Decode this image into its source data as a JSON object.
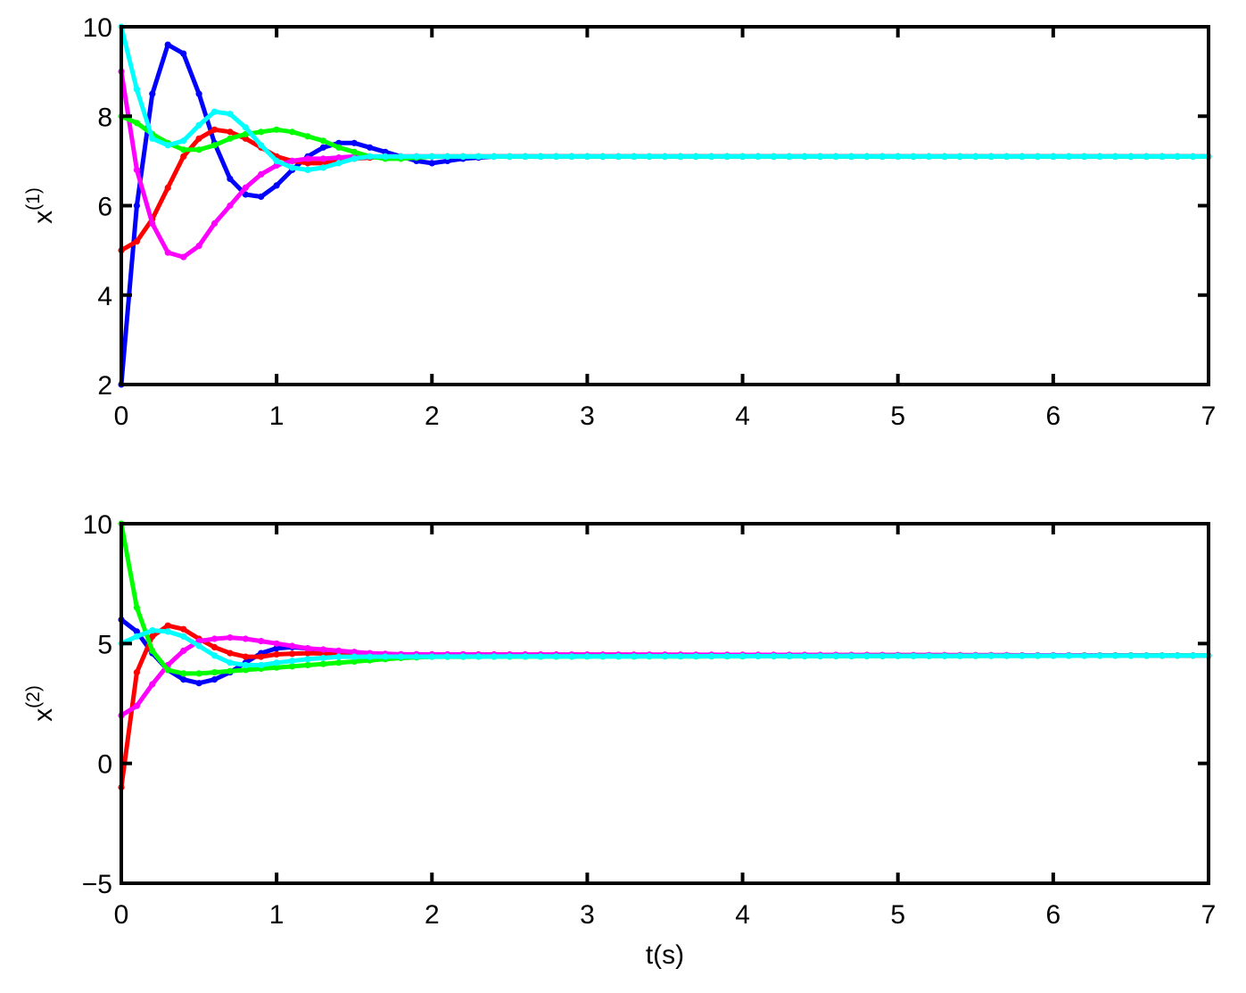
{
  "chart_data": [
    {
      "type": "line",
      "ylabel": "x",
      "ylabel_superscript": "(1)",
      "xlabel": "",
      "xlim": [
        0,
        7
      ],
      "ylim": [
        2,
        10
      ],
      "xticks": [
        "0",
        "1",
        "2",
        "3",
        "4",
        "5",
        "6",
        "7"
      ],
      "yticks": [
        "2",
        "4",
        "6",
        "8",
        "10"
      ],
      "grid": false,
      "markers": true,
      "series": [
        {
          "color": "#0000ff",
          "initial": 2,
          "final": 7.1,
          "points": [
            [
              0,
              2
            ],
            [
              0.1,
              6
            ],
            [
              0.2,
              8.5
            ],
            [
              0.3,
              9.6
            ],
            [
              0.4,
              9.4
            ],
            [
              0.5,
              8.5
            ],
            [
              0.6,
              7.4
            ],
            [
              0.7,
              6.6
            ],
            [
              0.8,
              6.25
            ],
            [
              0.9,
              6.2
            ],
            [
              1.0,
              6.45
            ],
            [
              1.1,
              6.8
            ],
            [
              1.2,
              7.1
            ],
            [
              1.3,
              7.3
            ],
            [
              1.4,
              7.4
            ],
            [
              1.5,
              7.4
            ],
            [
              1.6,
              7.3
            ],
            [
              1.7,
              7.2
            ],
            [
              1.8,
              7.1
            ],
            [
              1.9,
              7.0
            ],
            [
              2.0,
              6.95
            ],
            [
              2.1,
              7.0
            ],
            [
              2.2,
              7.05
            ],
            [
              2.4,
              7.1
            ],
            [
              7,
              7.1
            ]
          ]
        },
        {
          "color": "#ff0000",
          "initial": 5,
          "final": 7.1,
          "points": [
            [
              0,
              5
            ],
            [
              0.1,
              5.2
            ],
            [
              0.2,
              5.7
            ],
            [
              0.3,
              6.4
            ],
            [
              0.4,
              7.1
            ],
            [
              0.5,
              7.5
            ],
            [
              0.6,
              7.7
            ],
            [
              0.7,
              7.65
            ],
            [
              0.8,
              7.5
            ],
            [
              0.9,
              7.3
            ],
            [
              1.0,
              7.1
            ],
            [
              1.1,
              7.0
            ],
            [
              1.2,
              6.95
            ],
            [
              1.3,
              6.95
            ],
            [
              1.4,
              7.0
            ],
            [
              1.5,
              7.05
            ],
            [
              1.7,
              7.1
            ],
            [
              7,
              7.1
            ]
          ]
        },
        {
          "color": "#ff00ff",
          "initial": 9,
          "final": 7.1,
          "points": [
            [
              0,
              9
            ],
            [
              0.1,
              6.8
            ],
            [
              0.2,
              5.6
            ],
            [
              0.3,
              4.95
            ],
            [
              0.4,
              4.85
            ],
            [
              0.5,
              5.1
            ],
            [
              0.6,
              5.6
            ],
            [
              0.7,
              6.0
            ],
            [
              0.8,
              6.4
            ],
            [
              0.9,
              6.7
            ],
            [
              1.0,
              6.9
            ],
            [
              1.1,
              7.0
            ],
            [
              1.2,
              7.05
            ],
            [
              1.3,
              7.05
            ],
            [
              1.5,
              7.1
            ],
            [
              7,
              7.1
            ]
          ]
        },
        {
          "color": "#00ff00",
          "initial": 8,
          "final": 7.1,
          "points": [
            [
              0,
              8
            ],
            [
              0.1,
              7.85
            ],
            [
              0.2,
              7.6
            ],
            [
              0.3,
              7.4
            ],
            [
              0.4,
              7.25
            ],
            [
              0.5,
              7.25
            ],
            [
              0.6,
              7.35
            ],
            [
              0.7,
              7.5
            ],
            [
              0.8,
              7.6
            ],
            [
              0.9,
              7.65
            ],
            [
              1.0,
              7.7
            ],
            [
              1.1,
              7.65
            ],
            [
              1.2,
              7.55
            ],
            [
              1.3,
              7.45
            ],
            [
              1.4,
              7.3
            ],
            [
              1.5,
              7.2
            ],
            [
              1.6,
              7.1
            ],
            [
              1.7,
              7.05
            ],
            [
              1.8,
              7.05
            ],
            [
              2.0,
              7.1
            ],
            [
              7,
              7.1
            ]
          ]
        },
        {
          "color": "#00ffff",
          "initial": 10,
          "final": 7.1,
          "points": [
            [
              0,
              10
            ],
            [
              0.1,
              8.6
            ],
            [
              0.2,
              7.5
            ],
            [
              0.3,
              7.35
            ],
            [
              0.4,
              7.45
            ],
            [
              0.5,
              7.8
            ],
            [
              0.6,
              8.1
            ],
            [
              0.7,
              8.05
            ],
            [
              0.8,
              7.75
            ],
            [
              0.9,
              7.35
            ],
            [
              1.0,
              7.0
            ],
            [
              1.1,
              6.85
            ],
            [
              1.2,
              6.8
            ],
            [
              1.3,
              6.85
            ],
            [
              1.4,
              6.95
            ],
            [
              1.5,
              7.05
            ],
            [
              1.6,
              7.1
            ],
            [
              7,
              7.1
            ]
          ]
        }
      ]
    },
    {
      "type": "line",
      "ylabel": "x",
      "ylabel_superscript": "(2)",
      "xlabel": "t(s)",
      "xlim": [
        0,
        7
      ],
      "ylim": [
        -5,
        10
      ],
      "xticks": [
        "0",
        "1",
        "2",
        "3",
        "4",
        "5",
        "6",
        "7"
      ],
      "yticks": [
        "−5",
        "0",
        "5",
        "10"
      ],
      "grid": false,
      "markers": true,
      "series": [
        {
          "color": "#0000ff",
          "initial": 6,
          "final": 4.5,
          "points": [
            [
              0,
              6
            ],
            [
              0.1,
              5.5
            ],
            [
              0.2,
              4.6
            ],
            [
              0.3,
              3.9
            ],
            [
              0.4,
              3.5
            ],
            [
              0.5,
              3.35
            ],
            [
              0.6,
              3.5
            ],
            [
              0.7,
              3.8
            ],
            [
              0.8,
              4.2
            ],
            [
              0.9,
              4.6
            ],
            [
              1.0,
              4.8
            ],
            [
              1.1,
              4.85
            ],
            [
              1.2,
              4.8
            ],
            [
              1.3,
              4.7
            ],
            [
              1.5,
              4.6
            ],
            [
              1.8,
              4.5
            ],
            [
              7,
              4.5
            ]
          ]
        },
        {
          "color": "#ff0000",
          "initial": -1,
          "final": 4.5,
          "points": [
            [
              0,
              -1
            ],
            [
              0.1,
              3.8
            ],
            [
              0.2,
              5.3
            ],
            [
              0.3,
              5.75
            ],
            [
              0.4,
              5.6
            ],
            [
              0.5,
              5.2
            ],
            [
              0.6,
              4.85
            ],
            [
              0.7,
              4.6
            ],
            [
              0.8,
              4.45
            ],
            [
              0.9,
              4.45
            ],
            [
              1.0,
              4.55
            ],
            [
              1.2,
              4.6
            ],
            [
              1.5,
              4.55
            ],
            [
              7,
              4.5
            ]
          ]
        },
        {
          "color": "#ff00ff",
          "initial": 2,
          "final": 4.5,
          "points": [
            [
              0,
              2
            ],
            [
              0.1,
              2.4
            ],
            [
              0.2,
              3.3
            ],
            [
              0.3,
              4.1
            ],
            [
              0.4,
              4.7
            ],
            [
              0.5,
              5.1
            ],
            [
              0.6,
              5.2
            ],
            [
              0.7,
              5.25
            ],
            [
              0.8,
              5.2
            ],
            [
              0.9,
              5.1
            ],
            [
              1.0,
              5.0
            ],
            [
              1.1,
              4.9
            ],
            [
              1.2,
              4.8
            ],
            [
              1.4,
              4.7
            ],
            [
              1.6,
              4.6
            ],
            [
              1.8,
              4.55
            ],
            [
              7,
              4.5
            ]
          ]
        },
        {
          "color": "#00ff00",
          "initial": 10,
          "final": 4.5,
          "points": [
            [
              0,
              10
            ],
            [
              0.1,
              6.5
            ],
            [
              0.2,
              4.7
            ],
            [
              0.3,
              3.9
            ],
            [
              0.4,
              3.75
            ],
            [
              0.5,
              3.75
            ],
            [
              0.6,
              3.8
            ],
            [
              0.7,
              3.85
            ],
            [
              0.8,
              3.9
            ],
            [
              0.9,
              3.95
            ],
            [
              1.0,
              4.0
            ],
            [
              1.2,
              4.1
            ],
            [
              1.4,
              4.2
            ],
            [
              1.6,
              4.3
            ],
            [
              1.8,
              4.4
            ],
            [
              2.0,
              4.45
            ],
            [
              7,
              4.5
            ]
          ]
        },
        {
          "color": "#00ffff",
          "initial": 5,
          "final": 4.5,
          "points": [
            [
              0,
              5
            ],
            [
              0.1,
              5.3
            ],
            [
              0.2,
              5.55
            ],
            [
              0.3,
              5.5
            ],
            [
              0.4,
              5.3
            ],
            [
              0.5,
              4.9
            ],
            [
              0.6,
              4.5
            ],
            [
              0.7,
              4.2
            ],
            [
              0.8,
              4.1
            ],
            [
              0.9,
              4.1
            ],
            [
              1.0,
              4.2
            ],
            [
              1.2,
              4.35
            ],
            [
              1.4,
              4.45
            ],
            [
              7,
              4.5
            ]
          ]
        }
      ]
    }
  ]
}
